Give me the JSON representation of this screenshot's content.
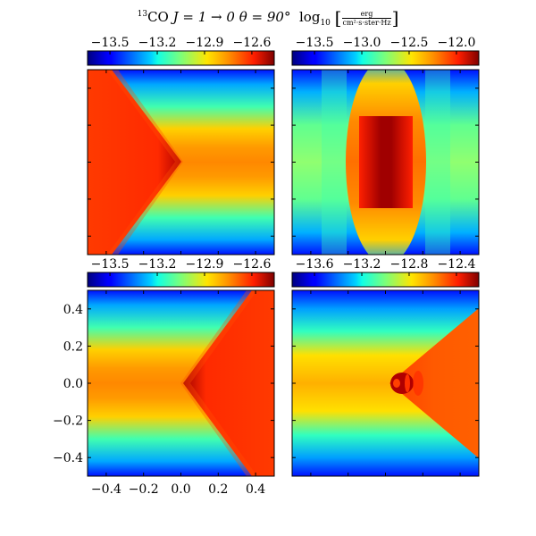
{
  "title": {
    "isotope": "13",
    "species": "CO",
    "transition": "J = 1 → 0",
    "angle": "θ = 90°",
    "log": "log",
    "log_base": "10",
    "unit_num": "erg",
    "unit_den": "cm²·s·ster·Hz"
  },
  "chart_data": [
    {
      "type": "heatmap",
      "panel": "top-left",
      "colorbar": {
        "ticks": [
          "−13.5",
          "−13.2",
          "−12.9",
          "−12.6"
        ],
        "colormap": "jet"
      },
      "xticks": [],
      "yticks": [],
      "xlim": [
        -0.5,
        0.5
      ],
      "ylim": [
        -0.5,
        0.5
      ]
    },
    {
      "type": "heatmap",
      "panel": "top-right",
      "colorbar": {
        "ticks": [
          "−13.5",
          "−13.0",
          "−12.5",
          "−12.0"
        ],
        "colormap": "jet"
      },
      "xticks": [],
      "yticks": [],
      "xlim": [
        -0.5,
        0.5
      ],
      "ylim": [
        -0.5,
        0.5
      ]
    },
    {
      "type": "heatmap",
      "panel": "bottom-left",
      "colorbar": {
        "ticks": [
          "−13.5",
          "−13.2",
          "−12.9",
          "−12.6"
        ],
        "colormap": "jet"
      },
      "xticks": [
        "−0.4",
        "−0.2",
        "0.0",
        "0.2",
        "0.4"
      ],
      "yticks": [
        "0.4",
        "0.2",
        "0.0",
        "−0.2",
        "−0.4"
      ],
      "xlim": [
        -0.5,
        0.5
      ],
      "ylim": [
        -0.5,
        0.5
      ]
    },
    {
      "type": "heatmap",
      "panel": "bottom-right",
      "colorbar": {
        "ticks": [
          "−13.6",
          "−13.2",
          "−12.8",
          "−12.4"
        ],
        "colormap": "jet"
      },
      "xticks": [],
      "yticks": [],
      "xlim": [
        -0.5,
        0.5
      ],
      "ylim": [
        -0.5,
        0.5
      ]
    }
  ]
}
